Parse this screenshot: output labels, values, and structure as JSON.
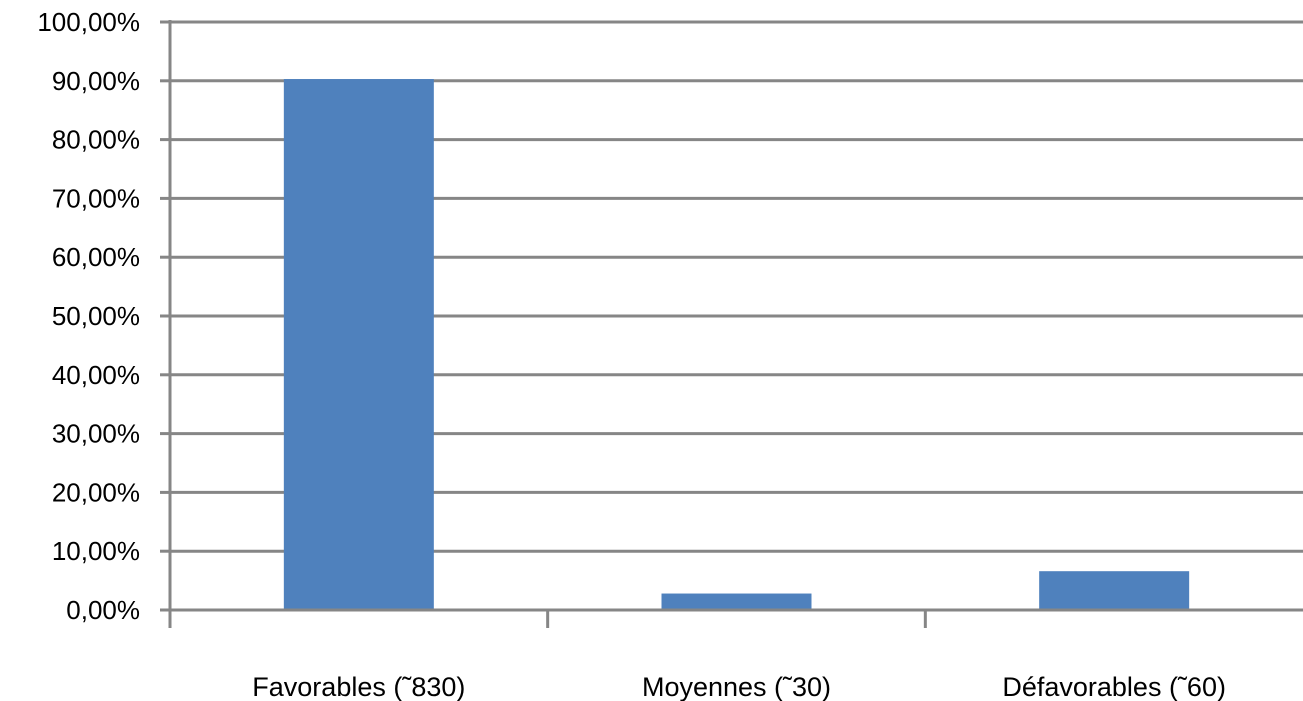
{
  "chart_data": {
    "type": "bar",
    "categories": [
      "Favorables (˜830)",
      "Moyennes (˜30)",
      "Défavorables (˜60)"
    ],
    "values": [
      90.3,
      2.8,
      6.6
    ],
    "ylim": [
      0,
      100
    ],
    "yticks": [
      0,
      10,
      20,
      30,
      40,
      50,
      60,
      70,
      80,
      90,
      100
    ],
    "ytick_labels": [
      "0,00%",
      "10,00%",
      "20,00%",
      "30,00%",
      "40,00%",
      "50,00%",
      "60,00%",
      "70,00%",
      "80,00%",
      "90,00%",
      "100,00%"
    ],
    "grid": true,
    "legend": "none",
    "bar_color": "#4f81bd",
    "grid_color": "#868686"
  }
}
